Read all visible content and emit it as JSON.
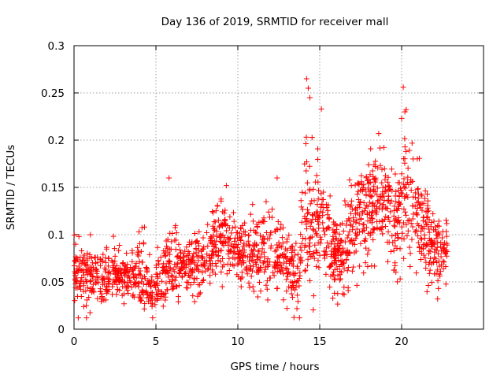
{
  "chart_data": {
    "type": "scatter",
    "title": "Day 136 of 2019, SRMTID for receiver mall",
    "xlabel": "GPS time / hours",
    "ylabel": "SRMTID / TECUs",
    "xlim": [
      0,
      25
    ],
    "ylim": [
      0,
      0.3
    ],
    "x_ticks": [
      0,
      5,
      10,
      15,
      20
    ],
    "x_tick_labels": [
      "0",
      "5",
      "10",
      "15",
      "20"
    ],
    "y_ticks": [
      0,
      0.05,
      0.1,
      0.15,
      0.2,
      0.25,
      0.3
    ],
    "y_tick_labels": [
      "0",
      "0.05",
      "0.1",
      "0.15",
      "0.2",
      "0.25",
      "0.3"
    ],
    "grid": true,
    "marker": "+",
    "color": "#ff0000",
    "series": [
      {
        "name": "SRMTID",
        "profile": [
          {
            "x": 0.0,
            "mean": 0.058,
            "spread": 0.018
          },
          {
            "x": 1.0,
            "mean": 0.056,
            "spread": 0.016
          },
          {
            "x": 2.0,
            "mean": 0.055,
            "spread": 0.016
          },
          {
            "x": 3.0,
            "mean": 0.056,
            "spread": 0.017
          },
          {
            "x": 4.0,
            "mean": 0.06,
            "spread": 0.02
          },
          {
            "x": 4.7,
            "mean": 0.042,
            "spread": 0.016
          },
          {
            "x": 5.3,
            "mean": 0.05,
            "spread": 0.018
          },
          {
            "x": 6.0,
            "mean": 0.07,
            "spread": 0.022
          },
          {
            "x": 7.0,
            "mean": 0.065,
            "spread": 0.018
          },
          {
            "x": 8.0,
            "mean": 0.072,
            "spread": 0.02
          },
          {
            "x": 9.0,
            "mean": 0.095,
            "spread": 0.022
          },
          {
            "x": 10.0,
            "mean": 0.082,
            "spread": 0.02
          },
          {
            "x": 11.0,
            "mean": 0.08,
            "spread": 0.022
          },
          {
            "x": 12.0,
            "mean": 0.085,
            "spread": 0.025
          },
          {
            "x": 13.0,
            "mean": 0.07,
            "spread": 0.02
          },
          {
            "x": 13.7,
            "mean": 0.055,
            "spread": 0.02
          },
          {
            "x": 14.2,
            "mean": 0.12,
            "spread": 0.045
          },
          {
            "x": 15.0,
            "mean": 0.12,
            "spread": 0.035
          },
          {
            "x": 16.0,
            "mean": 0.075,
            "spread": 0.02
          },
          {
            "x": 17.0,
            "mean": 0.1,
            "spread": 0.03
          },
          {
            "x": 18.0,
            "mean": 0.13,
            "spread": 0.03
          },
          {
            "x": 19.0,
            "mean": 0.14,
            "spread": 0.03
          },
          {
            "x": 19.5,
            "mean": 0.1,
            "spread": 0.025
          },
          {
            "x": 20.2,
            "mean": 0.15,
            "spread": 0.04
          },
          {
            "x": 21.0,
            "mean": 0.11,
            "spread": 0.03
          },
          {
            "x": 22.0,
            "mean": 0.09,
            "spread": 0.025
          },
          {
            "x": 22.8,
            "mean": 0.08,
            "spread": 0.018
          }
        ],
        "points_per_hour": 80,
        "x_range": [
          0,
          22.8
        ],
        "peaks": [
          {
            "x": 14.2,
            "y": 0.265
          },
          {
            "x": 14.3,
            "y": 0.255
          },
          {
            "x": 14.4,
            "y": 0.245
          },
          {
            "x": 15.1,
            "y": 0.233
          },
          {
            "x": 20.1,
            "y": 0.256
          },
          {
            "x": 20.2,
            "y": 0.23
          },
          {
            "x": 20.0,
            "y": 0.223
          },
          {
            "x": 18.6,
            "y": 0.207
          },
          {
            "x": 5.8,
            "y": 0.16
          },
          {
            "x": 9.3,
            "y": 0.152
          },
          {
            "x": 12.4,
            "y": 0.16
          },
          {
            "x": 4.8,
            "y": 0.012
          },
          {
            "x": 13.0,
            "y": 0.022
          },
          {
            "x": 22.2,
            "y": 0.032
          },
          {
            "x": 1.0,
            "y": 0.1
          },
          {
            "x": 0.3,
            "y": 0.098
          },
          {
            "x": 4.3,
            "y": 0.108
          },
          {
            "x": 10.9,
            "y": 0.132
          }
        ]
      }
    ]
  }
}
